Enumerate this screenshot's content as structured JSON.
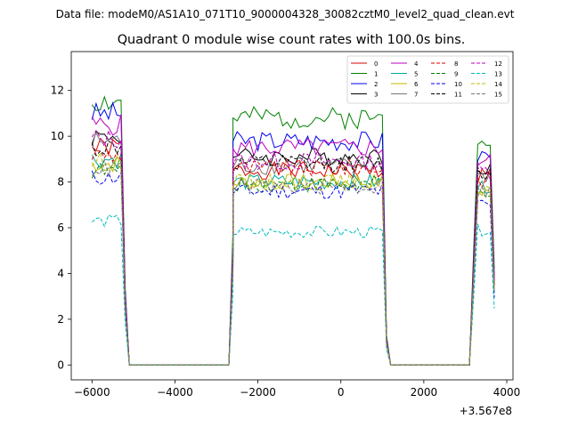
{
  "chart_data": {
    "type": "line",
    "suptitle": "Data file: modeM0/AS1A10_071T10_9000004328_30082cztM0_level2_quad_clean.evt",
    "title": "Quadrant 0 module wise count rates with 100.0s bins.",
    "xlabel": "",
    "ylabel": "",
    "offset_label": "+3.567e8",
    "xlim": [
      -6500,
      4150
    ],
    "ylim": [
      -0.65,
      13.7
    ],
    "xticks": [
      -6000,
      -4000,
      -2000,
      0,
      2000,
      4000
    ],
    "xtick_labels": [
      "−6000",
      "−4000",
      "−2000",
      "0",
      "2000",
      "4000"
    ],
    "yticks": [
      0,
      2,
      4,
      6,
      8,
      10,
      12
    ],
    "ytick_labels": [
      "0",
      "2",
      "4",
      "6",
      "8",
      "10",
      "12"
    ],
    "legend_loc": "upper right",
    "legend_ncol": 4,
    "time_segments": [
      {
        "start": -6000,
        "end": -5300
      },
      {
        "start": -2600,
        "end": 1000
      },
      {
        "start": 3300,
        "end": 3600
      }
    ],
    "gap_ends": [
      -5100,
      -2700,
      1200,
      3100
    ],
    "series": [
      {
        "name": "0",
        "color": "#dd0000",
        "dash": "solid",
        "seed": 1,
        "levels": [
          9.5,
          8.5,
          8.3
        ]
      },
      {
        "name": "1",
        "color": "#008000",
        "dash": "solid",
        "seed": 2,
        "levels": [
          11.5,
          10.8,
          10.0
        ]
      },
      {
        "name": "2",
        "color": "#0000ee",
        "dash": "solid",
        "seed": 3,
        "levels": [
          11.0,
          9.8,
          9.2
        ]
      },
      {
        "name": "3",
        "color": "#000000",
        "dash": "solid",
        "seed": 4,
        "levels": [
          10.0,
          9.1,
          8.7
        ]
      },
      {
        "name": "4",
        "color": "#bb00bb",
        "dash": "solid",
        "seed": 5,
        "levels": [
          10.5,
          9.5,
          8.9
        ]
      },
      {
        "name": "5",
        "color": "#00aa99",
        "dash": "solid",
        "seed": 6,
        "levels": [
          9.0,
          8.0,
          7.8
        ]
      },
      {
        "name": "6",
        "color": "#bbbb00",
        "dash": "solid",
        "seed": 7,
        "levels": [
          8.8,
          8.0,
          7.6
        ]
      },
      {
        "name": "7",
        "color": "#777777",
        "dash": "solid",
        "seed": 8,
        "levels": [
          9.8,
          8.7,
          8.3
        ]
      },
      {
        "name": "8",
        "color": "#dd0000",
        "dash": "dashed",
        "seed": 9,
        "levels": [
          9.2,
          8.6,
          8.1
        ]
      },
      {
        "name": "9",
        "color": "#008000",
        "dash": "dashed",
        "seed": 10,
        "levels": [
          8.5,
          7.9,
          7.6
        ]
      },
      {
        "name": "10",
        "color": "#0000ee",
        "dash": "dashed",
        "seed": 11,
        "levels": [
          8.2,
          7.6,
          7.0
        ]
      },
      {
        "name": "11",
        "color": "#000000",
        "dash": "dashed",
        "seed": 12,
        "levels": [
          9.5,
          8.8,
          8.4
        ]
      },
      {
        "name": "12",
        "color": "#bb00bb",
        "dash": "dashed",
        "seed": 13,
        "levels": [
          9.9,
          8.9,
          8.5
        ]
      },
      {
        "name": "13",
        "color": "#00bbbb",
        "dash": "dashed",
        "seed": 14,
        "levels": [
          6.3,
          5.8,
          5.9
        ]
      },
      {
        "name": "14",
        "color": "#bbbb00",
        "dash": "dashed",
        "seed": 15,
        "levels": [
          8.9,
          8.0,
          7.7
        ]
      },
      {
        "name": "15",
        "color": "#777777",
        "dash": "dashed",
        "seed": 16,
        "levels": [
          8.6,
          7.8,
          7.6
        ]
      }
    ]
  }
}
